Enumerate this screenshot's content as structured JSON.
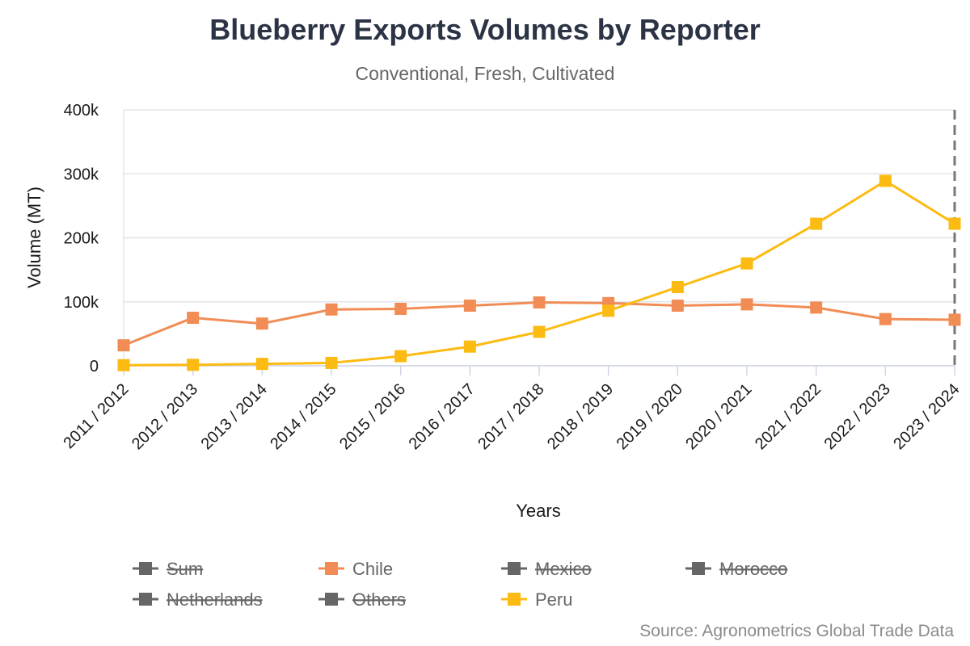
{
  "colors": {
    "chile": "#f28c55",
    "peru": "#fcbb12",
    "hidden": "#666666",
    "grid": "#e3e5ea",
    "axis": "#cfd5e6"
  },
  "chart_data": {
    "type": "line",
    "title": "Blueberry Exports Volumes by Reporter",
    "subtitle": "Conventional, Fresh, Cultivated",
    "xlabel": "Years",
    "ylabel": "Volume (MT)",
    "ylim": [
      0,
      400000
    ],
    "yticks": [
      0,
      100000,
      200000,
      300000,
      400000
    ],
    "ytick_labels": [
      "0",
      "100k",
      "200k",
      "300k",
      "400k"
    ],
    "categories": [
      "2011 / 2012",
      "2012 / 2013",
      "2013 / 2014",
      "2014 / 2015",
      "2015 / 2016",
      "2016 / 2017",
      "2017 / 2018",
      "2018 / 2019",
      "2019 / 2020",
      "2020 / 2021",
      "2021 / 2022",
      "2022 / 2023",
      "2023 / 2024"
    ],
    "grid": true,
    "legend_position": "bottom",
    "series": [
      {
        "name": "Chile",
        "values": [
          32000,
          75000,
          66000,
          88000,
          89000,
          94000,
          99000,
          98000,
          94000,
          96000,
          91000,
          73000,
          72000
        ]
      },
      {
        "name": "Peru",
        "values": [
          1000,
          1500,
          3000,
          4500,
          15000,
          30000,
          53000,
          86000,
          123000,
          160000,
          222000,
          289000,
          222000
        ]
      }
    ],
    "legend": [
      {
        "name": "Sum",
        "hidden": true
      },
      {
        "name": "Chile",
        "hidden": false
      },
      {
        "name": "Mexico",
        "hidden": true
      },
      {
        "name": "Morocco",
        "hidden": true
      },
      {
        "name": "Netherlands",
        "hidden": true
      },
      {
        "name": "Others",
        "hidden": true
      },
      {
        "name": "Peru",
        "hidden": false
      }
    ],
    "credit": "Source: Agronometrics Global Trade Data"
  }
}
